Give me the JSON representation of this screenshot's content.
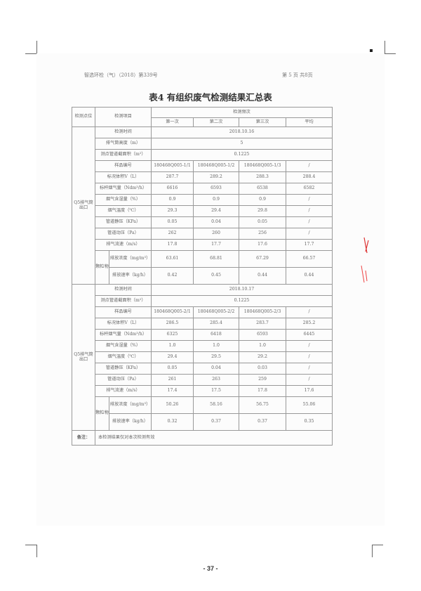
{
  "header": {
    "left": "智选环检（气）（2018）第339号",
    "right": "第 5 页 共8页"
  },
  "title": "表4 有组织废气检测结果汇总表",
  "table": {
    "col_site": "检测点位",
    "col_item": "检测项目",
    "col_freq": "检测频次",
    "sub_cols": [
      "第一次",
      "第二次",
      "第三次",
      "平均"
    ],
    "particulate_label": "颗粒物",
    "blocks": [
      {
        "site": "Q5排气筒出口",
        "rows": [
          {
            "item": "检测时间",
            "span": "2018.10.16"
          },
          {
            "item": "排气筒高度（m）",
            "span": "5"
          },
          {
            "item": "测点管道截面积（m²）",
            "span": "0.1225"
          },
          {
            "item": "样品编号",
            "values": [
              "180468Q005-1/1",
              "180468Q005-1/2",
              "180468Q005-1/3",
              "/"
            ]
          },
          {
            "item": "标况体积V（L）",
            "values": [
              "287.7",
              "289.2",
              "288.3",
              "288.4"
            ]
          },
          {
            "item": "标杆烟气量（Ndm³/h）",
            "values": [
              "6616",
              "6593",
              "6538",
              "6582"
            ]
          },
          {
            "item": "烟气含湿量（%）",
            "values": [
              "0.9",
              "0.9",
              "0.9",
              "/"
            ]
          },
          {
            "item": "烟气温度（℃）",
            "values": [
              "29.3",
              "29.4",
              "29.8",
              "/"
            ]
          },
          {
            "item": "管道静压（KPa）",
            "values": [
              "0.05",
              "0.04",
              "0.05",
              "/"
            ]
          },
          {
            "item": "管道动压（Pa）",
            "values": [
              "262",
              "260",
              "256",
              "/"
            ]
          },
          {
            "item": "排气流速（m/s）",
            "values": [
              "17.8",
              "17.7",
              "17.6",
              "17.7"
            ]
          },
          {
            "item": "排放浓度（mg/m³）",
            "sub": true,
            "values": [
              "63.61",
              "68.81",
              "67.29",
              "66.57"
            ]
          },
          {
            "item": "排放速率（kg/h）",
            "sub": true,
            "values": [
              "0.42",
              "0.45",
              "0.44",
              "0.44"
            ]
          }
        ]
      },
      {
        "site": "Q5排气筒出口",
        "rows": [
          {
            "item": "检测时间",
            "span": "2018.10.17"
          },
          {
            "item": "测点管道截面积（m²）",
            "span": "0.1225"
          },
          {
            "item": "样品编号",
            "values": [
              "180468Q005-2/1",
              "180468Q005-2/2",
              "180468Q005-2/3",
              "/"
            ]
          },
          {
            "item": "标况体积V（L）",
            "values": [
              "286.5",
              "285.4",
              "283.7",
              "285.2"
            ]
          },
          {
            "item": "标杆烟气量（Ndm³/h）",
            "values": [
              "6325",
              "6418",
              "6593",
              "6445"
            ]
          },
          {
            "item": "烟气含湿量（%）",
            "values": [
              "1.0",
              "1.0",
              "1.0",
              "/"
            ]
          },
          {
            "item": "烟气温度（℃）",
            "values": [
              "29.4",
              "29.5",
              "29.2",
              "/"
            ]
          },
          {
            "item": "管道静压（KPa）",
            "values": [
              "0.05",
              "0.04",
              "0.03",
              "/"
            ]
          },
          {
            "item": "管道动压（Pa）",
            "values": [
              "261",
              "263",
              "259",
              "/"
            ]
          },
          {
            "item": "排气流速（m/s）",
            "values": [
              "17.4",
              "17.5",
              "17.8",
              "17.6"
            ]
          },
          {
            "item": "排放浓度（mg/m³）",
            "sub": true,
            "values": [
              "50.26",
              "58.16",
              "56.75",
              "55.06"
            ]
          },
          {
            "item": "排放速率（kg/h）",
            "sub": true,
            "values": [
              "0.32",
              "0.37",
              "0.37",
              "0.35"
            ]
          }
        ]
      }
    ],
    "remark_label": "备注：",
    "remark": "本检测结果仅对本次检测有效"
  },
  "page_number": "- 37 -"
}
